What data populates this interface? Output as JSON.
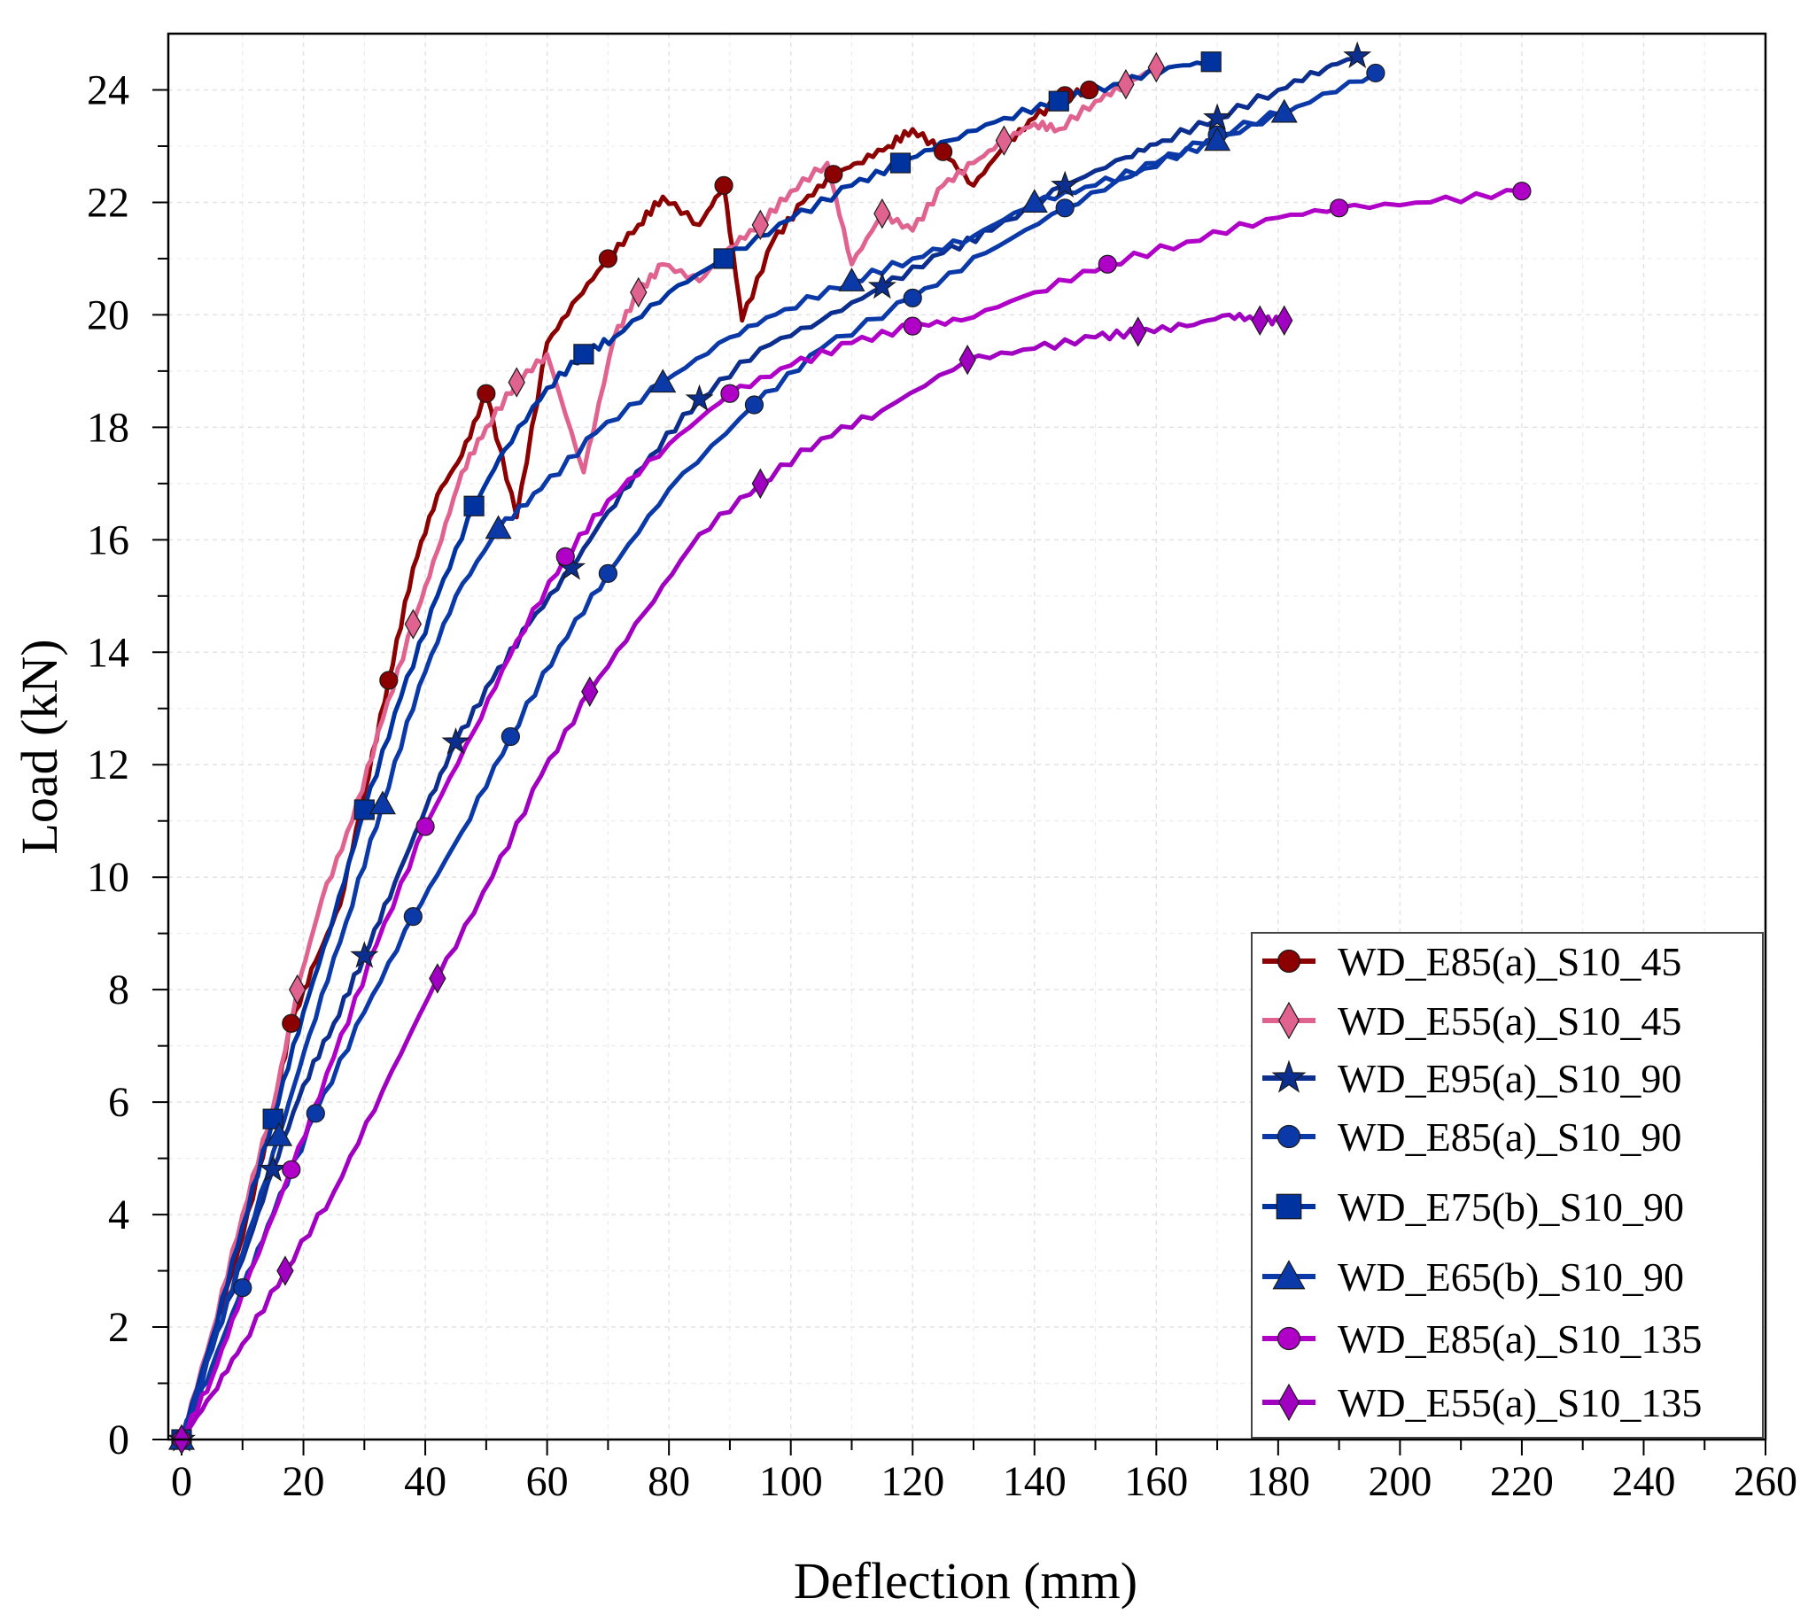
{
  "chart_data": {
    "type": "line",
    "title": "",
    "xlabel": "Deflection (mm)",
    "ylabel": "Load (kN)",
    "xlim": [
      0,
      260
    ],
    "ylim": [
      0,
      25
    ],
    "xticks": [
      0,
      20,
      40,
      60,
      80,
      100,
      120,
      140,
      160,
      180,
      200,
      220,
      240,
      260
    ],
    "yticks": [
      0,
      2,
      4,
      6,
      8,
      10,
      12,
      14,
      16,
      18,
      20,
      22,
      24
    ],
    "grid": true,
    "legend_position": "bottom-right",
    "series": [
      {
        "name": "WD_E85(a)_S10_45",
        "color": "#8b0000",
        "marker": "circle",
        "points": [
          [
            0,
            0
          ],
          [
            5,
            1.8
          ],
          [
            10,
            3.6
          ],
          [
            15,
            5.8
          ],
          [
            18,
            7.4
          ],
          [
            22,
            8.5
          ],
          [
            26,
            9.5
          ],
          [
            30,
            11.5
          ],
          [
            34,
            13.5
          ],
          [
            38,
            15.5
          ],
          [
            42,
            16.8
          ],
          [
            46,
            17.5
          ],
          [
            50,
            18.6
          ],
          [
            55,
            16.4
          ],
          [
            60,
            19.5
          ],
          [
            65,
            20.3
          ],
          [
            70,
            21.0
          ],
          [
            75,
            21.6
          ],
          [
            79,
            22.1
          ],
          [
            85,
            21.6
          ],
          [
            89,
            22.3
          ],
          [
            92,
            19.9
          ],
          [
            97,
            21.3
          ],
          [
            102,
            22.0
          ],
          [
            107,
            22.5
          ],
          [
            111,
            22.7
          ],
          [
            116,
            23.0
          ],
          [
            120,
            23.3
          ],
          [
            125,
            22.9
          ],
          [
            130,
            22.3
          ],
          [
            135,
            23.0
          ],
          [
            140,
            23.5
          ],
          [
            145,
            23.9
          ],
          [
            149,
            24.0
          ]
        ]
      },
      {
        "name": "WD_E55(a)_S10_45",
        "color": "#e0628f",
        "marker": "diamond",
        "points": [
          [
            0,
            0
          ],
          [
            5,
            1.9
          ],
          [
            10,
            4.0
          ],
          [
            15,
            5.9
          ],
          [
            19,
            8.0
          ],
          [
            23,
            9.6
          ],
          [
            28,
            11.0
          ],
          [
            33,
            12.8
          ],
          [
            38,
            14.5
          ],
          [
            42,
            15.8
          ],
          [
            46,
            17.2
          ],
          [
            50,
            18.0
          ],
          [
            55,
            18.8
          ],
          [
            60,
            19.3
          ],
          [
            66,
            17.2
          ],
          [
            71,
            19.6
          ],
          [
            75,
            20.4
          ],
          [
            79,
            20.9
          ],
          [
            85,
            20.6
          ],
          [
            90,
            21.2
          ],
          [
            95,
            21.6
          ],
          [
            100,
            22.2
          ],
          [
            106,
            22.7
          ],
          [
            110,
            20.9
          ],
          [
            115,
            21.8
          ],
          [
            120,
            21.5
          ],
          [
            125,
            22.3
          ],
          [
            130,
            22.7
          ],
          [
            135,
            23.1
          ],
          [
            140,
            23.4
          ],
          [
            144,
            23.3
          ],
          [
            150,
            23.8
          ],
          [
            155,
            24.1
          ],
          [
            160,
            24.4
          ]
        ]
      },
      {
        "name": "WD_E95(a)_S10_90",
        "color": "#0b2e8f",
        "marker": "star",
        "points": [
          [
            0,
            0
          ],
          [
            5,
            1.6
          ],
          [
            10,
            3.2
          ],
          [
            15,
            4.8
          ],
          [
            20,
            6.3
          ],
          [
            25,
            7.4
          ],
          [
            30,
            8.6
          ],
          [
            35,
            9.9
          ],
          [
            40,
            11.2
          ],
          [
            45,
            12.4
          ],
          [
            51,
            13.5
          ],
          [
            57,
            14.5
          ],
          [
            64,
            15.5
          ],
          [
            70,
            16.5
          ],
          [
            77,
            17.5
          ],
          [
            85,
            18.5
          ],
          [
            95,
            19.4
          ],
          [
            105,
            19.9
          ],
          [
            115,
            20.5
          ],
          [
            125,
            21.1
          ],
          [
            133,
            21.5
          ],
          [
            145,
            22.3
          ],
          [
            155,
            22.8
          ],
          [
            161,
            23.1
          ],
          [
            170,
            23.5
          ],
          [
            180,
            24.0
          ],
          [
            188,
            24.4
          ],
          [
            193,
            24.6
          ]
        ]
      },
      {
        "name": "WD_E85(a)_S10_90",
        "color": "#0b3aa8",
        "marker": "circle",
        "points": [
          [
            0,
            0
          ],
          [
            5,
            1.3
          ],
          [
            10,
            2.7
          ],
          [
            15,
            4.0
          ],
          [
            22,
            5.8
          ],
          [
            30,
            7.6
          ],
          [
            38,
            9.3
          ],
          [
            46,
            10.8
          ],
          [
            54,
            12.5
          ],
          [
            62,
            14.1
          ],
          [
            70,
            15.4
          ],
          [
            80,
            16.9
          ],
          [
            94,
            18.4
          ],
          [
            105,
            19.4
          ],
          [
            120,
            20.3
          ],
          [
            132,
            21.1
          ],
          [
            145,
            21.9
          ],
          [
            158,
            22.6
          ],
          [
            170,
            23.2
          ],
          [
            183,
            23.7
          ],
          [
            196,
            24.3
          ]
        ]
      },
      {
        "name": "WD_E75(b)_S10_90",
        "color": "#0033a0",
        "marker": "square",
        "points": [
          [
            0,
            0
          ],
          [
            5,
            1.8
          ],
          [
            10,
            3.8
          ],
          [
            15,
            5.7
          ],
          [
            20,
            7.6
          ],
          [
            25,
            9.3
          ],
          [
            30,
            11.2
          ],
          [
            36,
            13.2
          ],
          [
            42,
            15.0
          ],
          [
            48,
            16.6
          ],
          [
            53,
            17.6
          ],
          [
            60,
            18.7
          ],
          [
            66,
            19.3
          ],
          [
            71,
            19.6
          ],
          [
            80,
            20.4
          ],
          [
            89,
            21.0
          ],
          [
            100,
            21.7
          ],
          [
            110,
            22.3
          ],
          [
            118,
            22.7
          ],
          [
            126,
            23.1
          ],
          [
            135,
            23.5
          ],
          [
            144,
            23.8
          ],
          [
            153,
            24.1
          ],
          [
            162,
            24.4
          ],
          [
            169,
            24.5
          ]
        ]
      },
      {
        "name": "WD_E65(b)_S10_90",
        "color": "#0b3aa8",
        "marker": "triangle",
        "points": [
          [
            0,
            0
          ],
          [
            5,
            1.6
          ],
          [
            10,
            3.3
          ],
          [
            16,
            5.4
          ],
          [
            21,
            7.2
          ],
          [
            27,
            9.2
          ],
          [
            33,
            11.3
          ],
          [
            39,
            13.4
          ],
          [
            45,
            15.0
          ],
          [
            52,
            16.2
          ],
          [
            59,
            16.9
          ],
          [
            68,
            17.9
          ],
          [
            79,
            18.8
          ],
          [
            90,
            19.6
          ],
          [
            99,
            20.1
          ],
          [
            110,
            20.6
          ],
          [
            120,
            21.0
          ],
          [
            130,
            21.4
          ],
          [
            140,
            22.0
          ],
          [
            150,
            22.3
          ],
          [
            160,
            22.7
          ],
          [
            170,
            23.1
          ],
          [
            181,
            23.6
          ]
        ]
      },
      {
        "name": "WD_E85(a)_S10_135",
        "color": "#b000c8",
        "marker": "circle",
        "points": [
          [
            0,
            0
          ],
          [
            5,
            1.1
          ],
          [
            10,
            2.6
          ],
          [
            18,
            4.8
          ],
          [
            25,
            6.8
          ],
          [
            32,
            8.8
          ],
          [
            40,
            10.9
          ],
          [
            48,
            12.6
          ],
          [
            55,
            14.2
          ],
          [
            63,
            15.7
          ],
          [
            70,
            16.7
          ],
          [
            80,
            17.7
          ],
          [
            90,
            18.6
          ],
          [
            100,
            19.1
          ],
          [
            110,
            19.5
          ],
          [
            120,
            19.8
          ],
          [
            128,
            19.9
          ],
          [
            140,
            20.4
          ],
          [
            152,
            20.9
          ],
          [
            165,
            21.3
          ],
          [
            178,
            21.7
          ],
          [
            190,
            21.9
          ],
          [
            205,
            22.0
          ],
          [
            220,
            22.2
          ]
        ]
      },
      {
        "name": "WD_E55(a)_S10_135",
        "color": "#a000c0",
        "marker": "diamond",
        "points": [
          [
            0,
            0
          ],
          [
            5,
            0.8
          ],
          [
            10,
            1.7
          ],
          [
            17,
            3.0
          ],
          [
            25,
            4.4
          ],
          [
            33,
            6.2
          ],
          [
            42,
            8.2
          ],
          [
            51,
            10.0
          ],
          [
            59,
            11.8
          ],
          [
            67,
            13.3
          ],
          [
            76,
            14.7
          ],
          [
            85,
            16.1
          ],
          [
            95,
            17.0
          ],
          [
            105,
            17.8
          ],
          [
            115,
            18.3
          ],
          [
            129,
            19.2
          ],
          [
            140,
            19.4
          ],
          [
            150,
            19.6
          ],
          [
            157,
            19.7
          ],
          [
            165,
            19.8
          ],
          [
            172,
            20.0
          ],
          [
            177,
            19.9
          ],
          [
            181,
            19.9
          ]
        ]
      }
    ]
  }
}
